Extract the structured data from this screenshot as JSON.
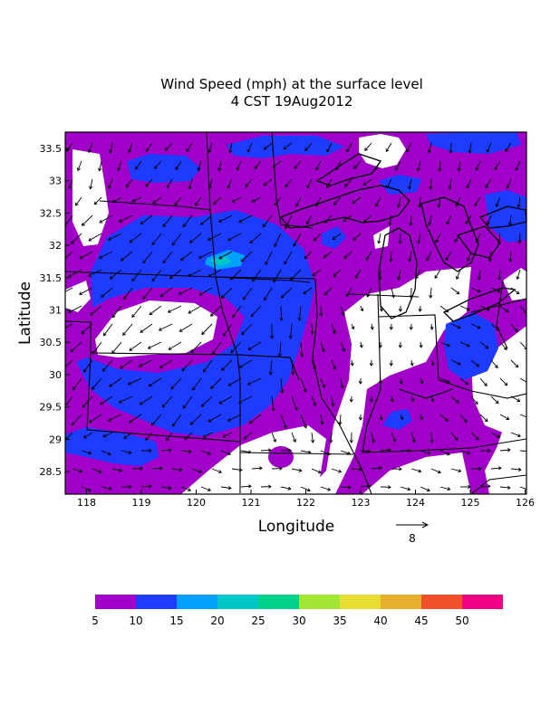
{
  "title": {
    "line1": "Wind Speed (mph) at the surface level",
    "line2": "4 CST 19Aug2012"
  },
  "axes": {
    "xlabel": "Longitude",
    "ylabel": "Latitude",
    "x_ticks": [
      "118",
      "119",
      "120",
      "121",
      "122",
      "123",
      "124",
      "125",
      "126"
    ],
    "y_ticks": [
      "33.5",
      "33",
      "32.5",
      "32",
      "31.5",
      "31",
      "30.5",
      "30",
      "29.5",
      "29",
      "28.5"
    ]
  },
  "reference_vector": {
    "label": "8"
  },
  "colorbar": {
    "labels": [
      "5",
      "10",
      "15",
      "20",
      "25",
      "30",
      "35",
      "40",
      "45",
      "50"
    ],
    "colors": [
      "#a000c8",
      "#1e3cff",
      "#00a0ff",
      "#00c8c8",
      "#00d28c",
      "#a0e632",
      "#e6dc32",
      "#e6af2d",
      "#f05028",
      "#f00082"
    ]
  },
  "colors": {
    "band_5_10": "#a000c8",
    "band_10_15": "#1e3cff",
    "band_15_20": "#00a0ff",
    "band_20_25": "#00c8c8",
    "background": "#ffffff",
    "lines": "#000000"
  }
}
